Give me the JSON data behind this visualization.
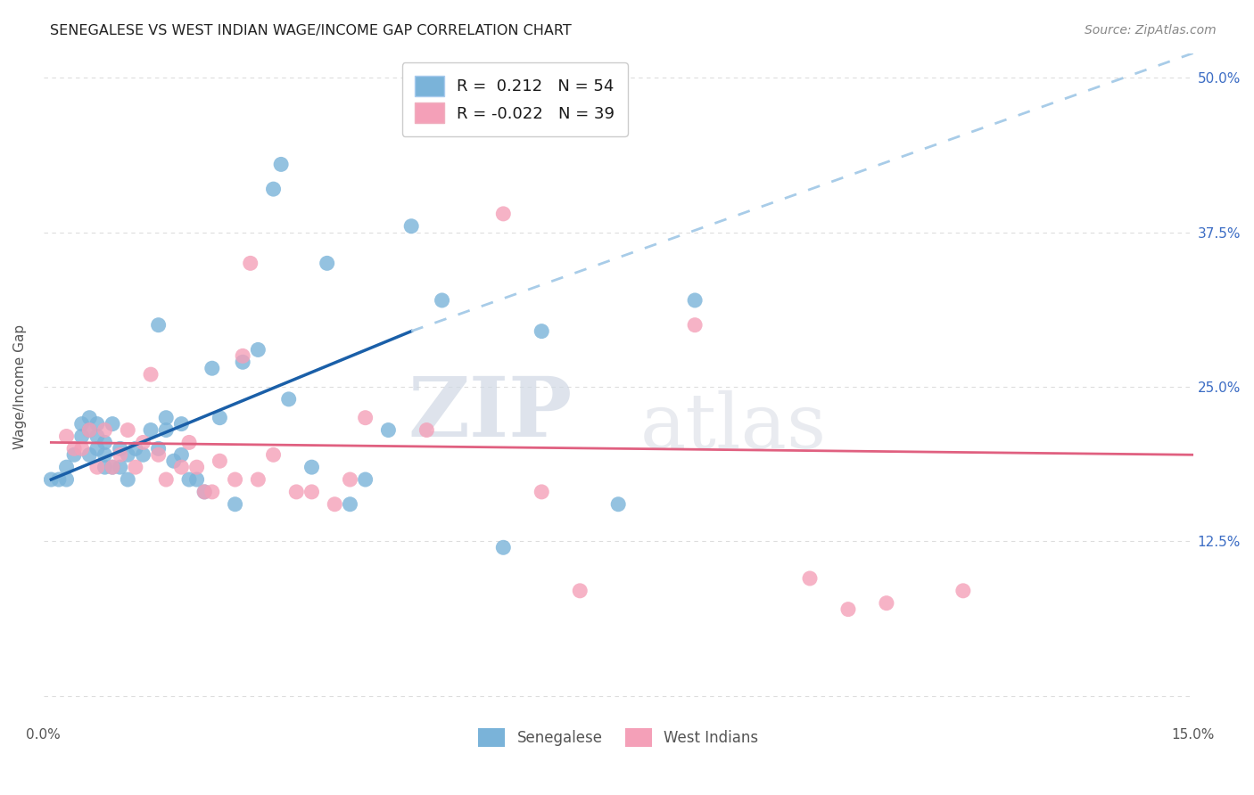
{
  "title": "SENEGALESE VS WEST INDIAN WAGE/INCOME GAP CORRELATION CHART",
  "source": "Source: ZipAtlas.com",
  "ylabel": "Wage/Income Gap",
  "xlim": [
    0.0,
    0.15
  ],
  "ylim": [
    -0.02,
    0.52
  ],
  "xticks": [
    0.0,
    0.025,
    0.05,
    0.075,
    0.1,
    0.125,
    0.15
  ],
  "xticklabels": [
    "0.0%",
    "",
    "",
    "",
    "",
    "",
    "15.0%"
  ],
  "yticks": [
    0.0,
    0.125,
    0.25,
    0.375,
    0.5
  ],
  "yticklabels": [
    "",
    "12.5%",
    "25.0%",
    "37.5%",
    "50.0%"
  ],
  "background_color": "#ffffff",
  "grid_color": "#dddddd",
  "watermark_zip": "ZIP",
  "watermark_atlas": "atlas",
  "senegalese_R": "0.212",
  "senegalese_N": "54",
  "westindian_R": "-0.022",
  "westindian_N": "39",
  "senegalese_color": "#7ab3d9",
  "westindian_color": "#f4a0b8",
  "trend_senegalese_color": "#1a5fa8",
  "trend_westindian_color": "#e06080",
  "trend_senegalese_ext_color": "#a8cce8",
  "senegalese_x": [
    0.001,
    0.002,
    0.003,
    0.003,
    0.004,
    0.005,
    0.005,
    0.006,
    0.006,
    0.006,
    0.007,
    0.007,
    0.007,
    0.008,
    0.008,
    0.008,
    0.009,
    0.009,
    0.01,
    0.01,
    0.011,
    0.011,
    0.012,
    0.013,
    0.014,
    0.015,
    0.015,
    0.016,
    0.016,
    0.017,
    0.018,
    0.018,
    0.019,
    0.02,
    0.021,
    0.022,
    0.023,
    0.025,
    0.026,
    0.028,
    0.03,
    0.031,
    0.032,
    0.035,
    0.037,
    0.04,
    0.042,
    0.045,
    0.048,
    0.052,
    0.06,
    0.065,
    0.075,
    0.085
  ],
  "senegalese_y": [
    0.175,
    0.175,
    0.175,
    0.185,
    0.195,
    0.21,
    0.22,
    0.215,
    0.225,
    0.195,
    0.2,
    0.21,
    0.22,
    0.185,
    0.195,
    0.205,
    0.185,
    0.22,
    0.185,
    0.2,
    0.175,
    0.195,
    0.2,
    0.195,
    0.215,
    0.2,
    0.3,
    0.215,
    0.225,
    0.19,
    0.195,
    0.22,
    0.175,
    0.175,
    0.165,
    0.265,
    0.225,
    0.155,
    0.27,
    0.28,
    0.41,
    0.43,
    0.24,
    0.185,
    0.35,
    0.155,
    0.175,
    0.215,
    0.38,
    0.32,
    0.12,
    0.295,
    0.155,
    0.32
  ],
  "westindian_x": [
    0.003,
    0.004,
    0.005,
    0.006,
    0.007,
    0.008,
    0.009,
    0.01,
    0.011,
    0.012,
    0.013,
    0.014,
    0.015,
    0.016,
    0.018,
    0.019,
    0.02,
    0.021,
    0.022,
    0.023,
    0.025,
    0.026,
    0.027,
    0.028,
    0.03,
    0.033,
    0.035,
    0.038,
    0.04,
    0.042,
    0.05,
    0.06,
    0.065,
    0.07,
    0.085,
    0.1,
    0.105,
    0.11,
    0.12
  ],
  "westindian_y": [
    0.21,
    0.2,
    0.2,
    0.215,
    0.185,
    0.215,
    0.185,
    0.195,
    0.215,
    0.185,
    0.205,
    0.26,
    0.195,
    0.175,
    0.185,
    0.205,
    0.185,
    0.165,
    0.165,
    0.19,
    0.175,
    0.275,
    0.35,
    0.175,
    0.195,
    0.165,
    0.165,
    0.155,
    0.175,
    0.225,
    0.215,
    0.39,
    0.165,
    0.085,
    0.3,
    0.095,
    0.07,
    0.075,
    0.085
  ],
  "trend_s_x0": 0.001,
  "trend_s_x1": 0.048,
  "trend_s_x2": 0.15,
  "trend_s_y0": 0.175,
  "trend_s_y1": 0.295,
  "trend_s_y2": 0.52,
  "trend_w_x0": 0.001,
  "trend_w_x1": 0.15,
  "trend_w_y0": 0.205,
  "trend_w_y1": 0.195
}
